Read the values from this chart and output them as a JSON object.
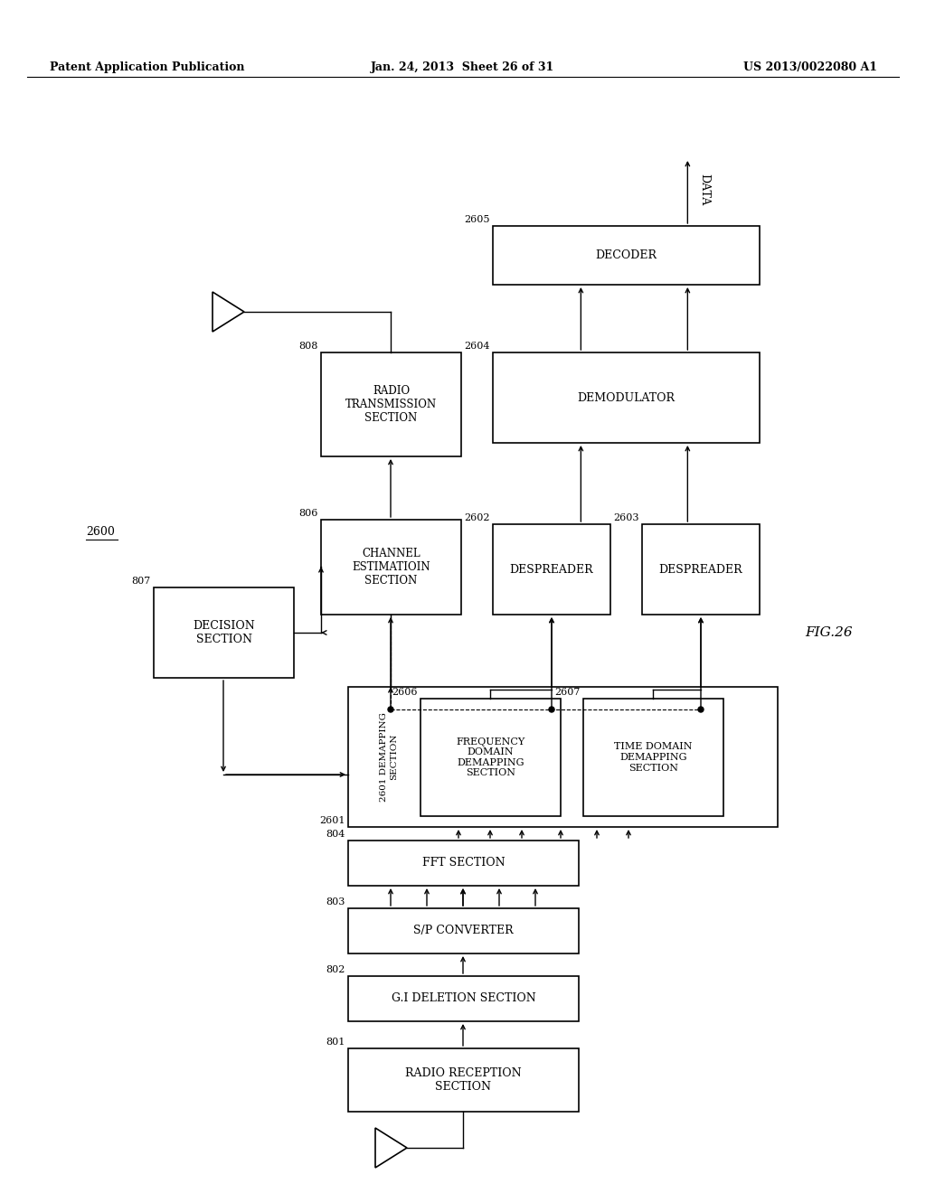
{
  "background": "#ffffff",
  "header_left": "Patent Application Publication",
  "header_center": "Jan. 24, 2013  Sheet 26 of 31",
  "header_right": "US 2013/0022080 A1",
  "fig_label": "FIG.26",
  "diagram_ref": "2600"
}
